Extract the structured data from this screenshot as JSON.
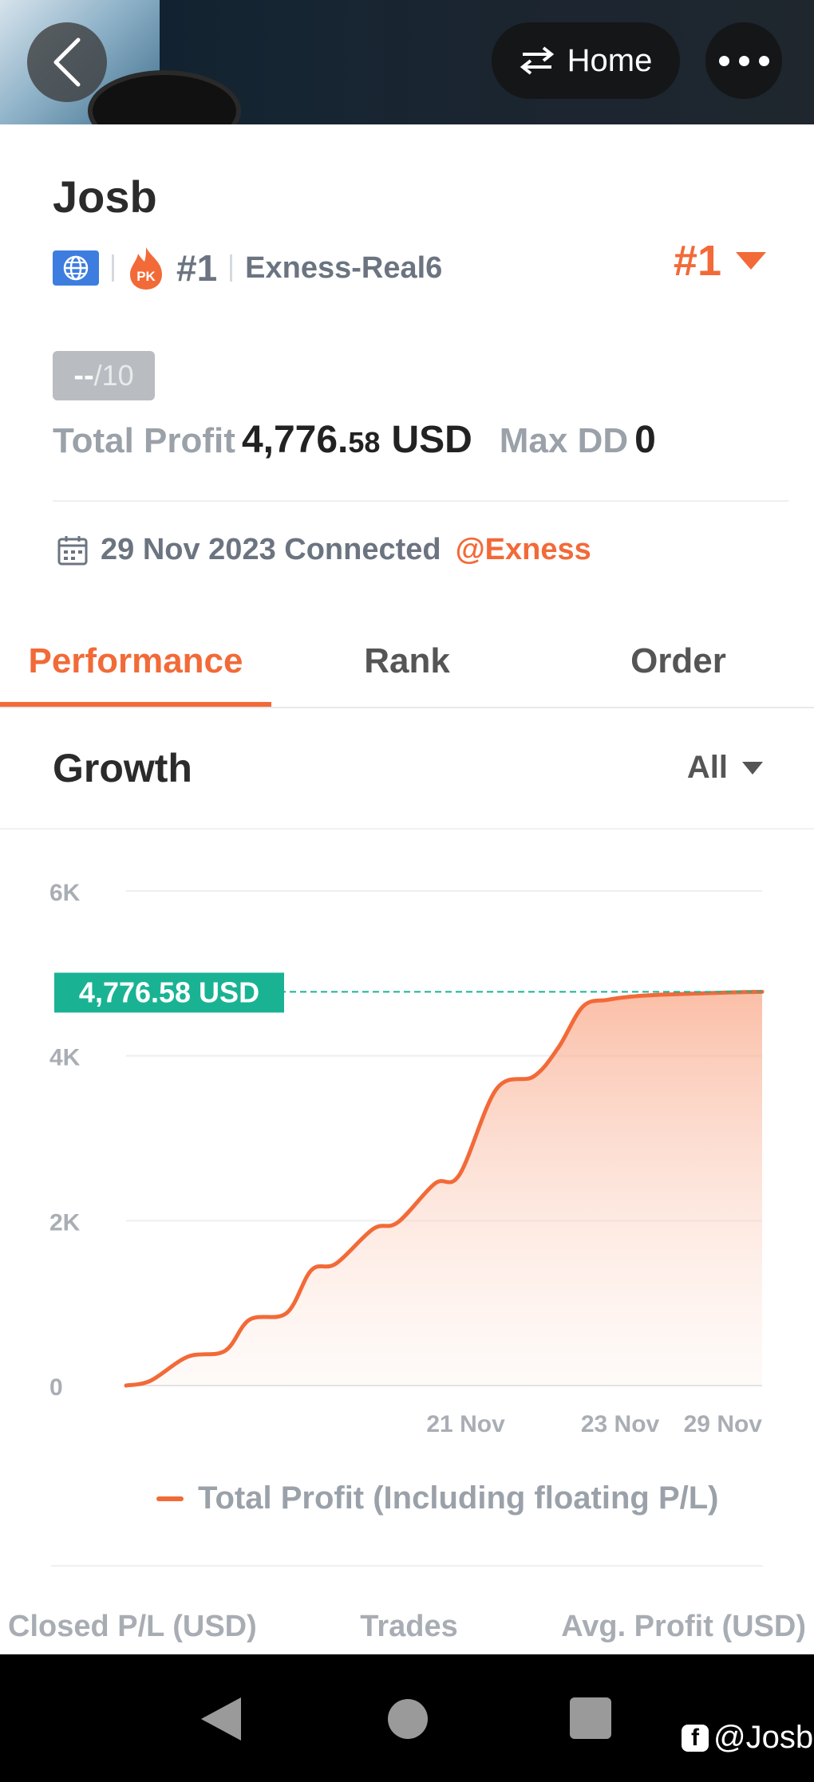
{
  "header": {
    "home_label": "Home"
  },
  "profile": {
    "name": "Josb",
    "pk_label": "PK",
    "rank": "#1",
    "server": "Exness-Real6",
    "rank_right": "#1"
  },
  "score": {
    "value": "--",
    "max": "/10"
  },
  "profit": {
    "label": "Total Profit",
    "value_main": "4,776.",
    "value_decimals": "58",
    "currency": "USD",
    "maxdd_label": "Max DD",
    "maxdd_value": "0"
  },
  "connected": {
    "text": "29 Nov 2023 Connected",
    "broker": "@Exness"
  },
  "tabs": [
    {
      "label": "Performance"
    },
    {
      "label": "Rank"
    },
    {
      "label": "Order"
    }
  ],
  "growth": {
    "title": "Growth",
    "filter": "All"
  },
  "chart_data": {
    "type": "area",
    "y_ticks": [
      "6K",
      "4K",
      "2K",
      "0"
    ],
    "ylim": [
      0,
      6000
    ],
    "x_ticks": [
      {
        "label": "21 Nov",
        "x": 5.5
      },
      {
        "label": "23 Nov",
        "x": 8.0
      },
      {
        "label": "29 Nov",
        "x": 10.3
      }
    ],
    "xlim": [
      0,
      10.3
    ],
    "series": [
      {
        "name": "Total Profit (Including floating P/L)",
        "color": "#f26a38",
        "x": [
          0,
          0.4,
          1,
          1.6,
          2,
          2.6,
          3,
          3.4,
          4,
          4.4,
          5,
          5.4,
          6,
          6.6,
          7,
          7.4,
          7.8,
          8.2,
          8.6,
          9,
          9.4,
          9.8,
          10.3
        ],
        "y": [
          0,
          60,
          350,
          420,
          800,
          880,
          1400,
          1480,
          1900,
          1980,
          2450,
          2560,
          3600,
          3750,
          4100,
          4600,
          4680,
          4720,
          4740,
          4750,
          4760,
          4770,
          4776.58
        ]
      }
    ],
    "current_value_label": "4,776.58 USD",
    "current_value": 4776.58
  },
  "legend": {
    "label": "Total Profit (Including floating P/L)"
  },
  "stats_headers": [
    "Closed P/L (USD)",
    "Trades",
    "Avg. Profit (USD)"
  ],
  "watermark": {
    "text": "@Josb"
  }
}
